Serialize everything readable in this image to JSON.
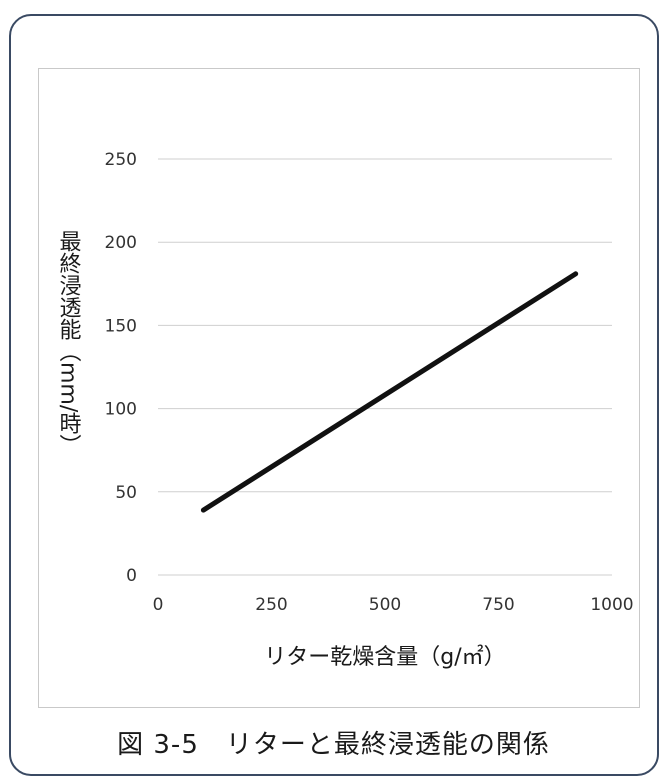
{
  "chart_data": {
    "type": "line",
    "title": "",
    "xlabel": "リター乾燥含量（g/㎡）",
    "ylabel": "最終浸透能（mm/時）",
    "xlim": [
      0,
      1000
    ],
    "ylim": [
      0,
      250
    ],
    "x_ticks": [
      "0",
      "250",
      "500",
      "750",
      "1000"
    ],
    "y_ticks": [
      "0",
      "50",
      "100",
      "150",
      "200",
      "250"
    ],
    "grid": "horizontal",
    "series": [
      {
        "color": "#111111",
        "x": [
          100,
          920
        ],
        "y": [
          39,
          181
        ]
      }
    ]
  },
  "caption": "図 3-5　リターと最終浸透能の関係"
}
